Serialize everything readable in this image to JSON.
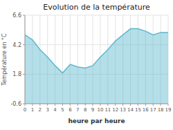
{
  "chart_data": {
    "type": "area",
    "title": "Evolution de la température",
    "xlabel": "heure par heure",
    "ylabel": "Température en °C",
    "x": [
      0,
      1,
      2,
      3,
      4,
      5,
      6,
      7,
      8,
      9,
      10,
      11,
      12,
      13,
      14,
      15,
      16,
      17,
      18,
      19
    ],
    "values": [
      5.0,
      4.6,
      3.8,
      3.2,
      2.5,
      1.9,
      2.6,
      2.4,
      2.3,
      2.5,
      3.2,
      3.8,
      4.5,
      5.0,
      5.5,
      5.5,
      5.3,
      5.0,
      5.2,
      5.2
    ],
    "color": "#5bb8cc",
    "xlim": [
      0,
      19
    ],
    "ylim": [
      -0.6,
      6.6
    ],
    "xticks": [
      0,
      1,
      2,
      3,
      4,
      5,
      6,
      7,
      8,
      9,
      10,
      11,
      12,
      13,
      14,
      15,
      16,
      17,
      18,
      19
    ],
    "yticks": [
      -0.6,
      1.8,
      4.2,
      6.6
    ],
    "grid": true
  }
}
